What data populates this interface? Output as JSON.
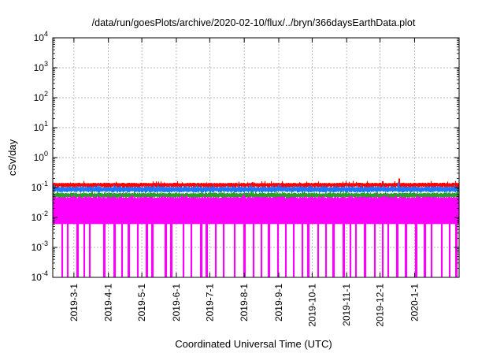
{
  "chart_data": {
    "type": "area",
    "title": "/data/run/goesPlots/archive/2020-02-10/flux/../bryn/366daysEarthData.plot",
    "xlabel": "Coordinated Universal Time (UTC)",
    "ylabel": "cSv/day",
    "y_scale": "log",
    "ylim": [
      0.0001,
      10000
    ],
    "xlim": [
      "2019-02-10",
      "2020-02-10"
    ],
    "grid": true,
    "legend": "none",
    "y_ticks": [
      {
        "base": "10",
        "exp": "-4",
        "value": 0.0001
      },
      {
        "base": "10",
        "exp": "-3",
        "value": 0.001
      },
      {
        "base": "10",
        "exp": "-2",
        "value": 0.01
      },
      {
        "base": "10",
        "exp": "-1",
        "value": 0.1
      },
      {
        "base": "10",
        "exp": "0",
        "value": 1
      },
      {
        "base": "10",
        "exp": "1",
        "value": 10
      },
      {
        "base": "10",
        "exp": "2",
        "value": 100
      },
      {
        "base": "10",
        "exp": "3",
        "value": 1000
      },
      {
        "base": "10",
        "exp": "4",
        "value": 10000
      }
    ],
    "x_ticks": [
      "2019-3-1",
      "2019-4-1",
      "2019-5-1",
      "2019-6-1",
      "2019-7-1",
      "2019-8-1",
      "2019-9-1",
      "2019-10-1",
      "2019-11-1",
      "2019-12-1",
      "2020-1-1"
    ],
    "x_tick_dates": [
      "2019-03-01",
      "2019-04-01",
      "2019-05-01",
      "2019-06-01",
      "2019-07-01",
      "2019-08-01",
      "2019-09-01",
      "2019-10-01",
      "2019-11-01",
      "2019-12-01",
      "2020-01-01"
    ],
    "series": [
      {
        "color": "#ff0000",
        "typical": 0.13,
        "low": 0.115,
        "high": 0.145,
        "peaks": [
          {
            "date": "2019-12-18",
            "y": 0.2
          }
        ]
      },
      {
        "color": "#1e78ff",
        "typical": 0.09,
        "low": 0.07,
        "high": 0.11,
        "peaks": [
          {
            "date": "2019-12-17",
            "y": 0.15
          }
        ]
      },
      {
        "color": "#2aa02a",
        "typical": 0.058,
        "low": 0.05,
        "high": 0.068,
        "peaks": []
      },
      {
        "color": "#ff00ff",
        "typical": 0.04,
        "low": 0.006,
        "high": 0.05,
        "dropout_floor": 0.0001,
        "peaks": []
      }
    ],
    "dropout_dates": [
      "2019-02-18",
      "2019-02-23",
      "2019-03-04",
      "2019-03-10",
      "2019-03-15",
      "2019-03-28",
      "2019-04-06",
      "2019-04-13",
      "2019-04-19",
      "2019-04-27",
      "2019-05-05",
      "2019-05-10",
      "2019-05-22",
      "2019-05-27",
      "2019-06-07",
      "2019-06-14",
      "2019-06-23",
      "2019-06-28",
      "2019-07-06",
      "2019-07-13",
      "2019-07-23",
      "2019-08-01",
      "2019-08-09",
      "2019-08-16",
      "2019-08-23",
      "2019-08-31",
      "2019-09-07",
      "2019-09-14",
      "2019-09-22",
      "2019-09-27",
      "2019-10-06",
      "2019-10-13",
      "2019-10-20",
      "2019-10-29",
      "2019-11-04",
      "2019-11-09",
      "2019-11-17",
      "2019-11-26",
      "2019-12-03",
      "2019-12-08",
      "2019-12-16",
      "2019-12-24",
      "2020-01-02",
      "2020-01-10",
      "2020-01-16",
      "2020-01-25",
      "2020-02-01",
      "2020-02-07"
    ]
  }
}
